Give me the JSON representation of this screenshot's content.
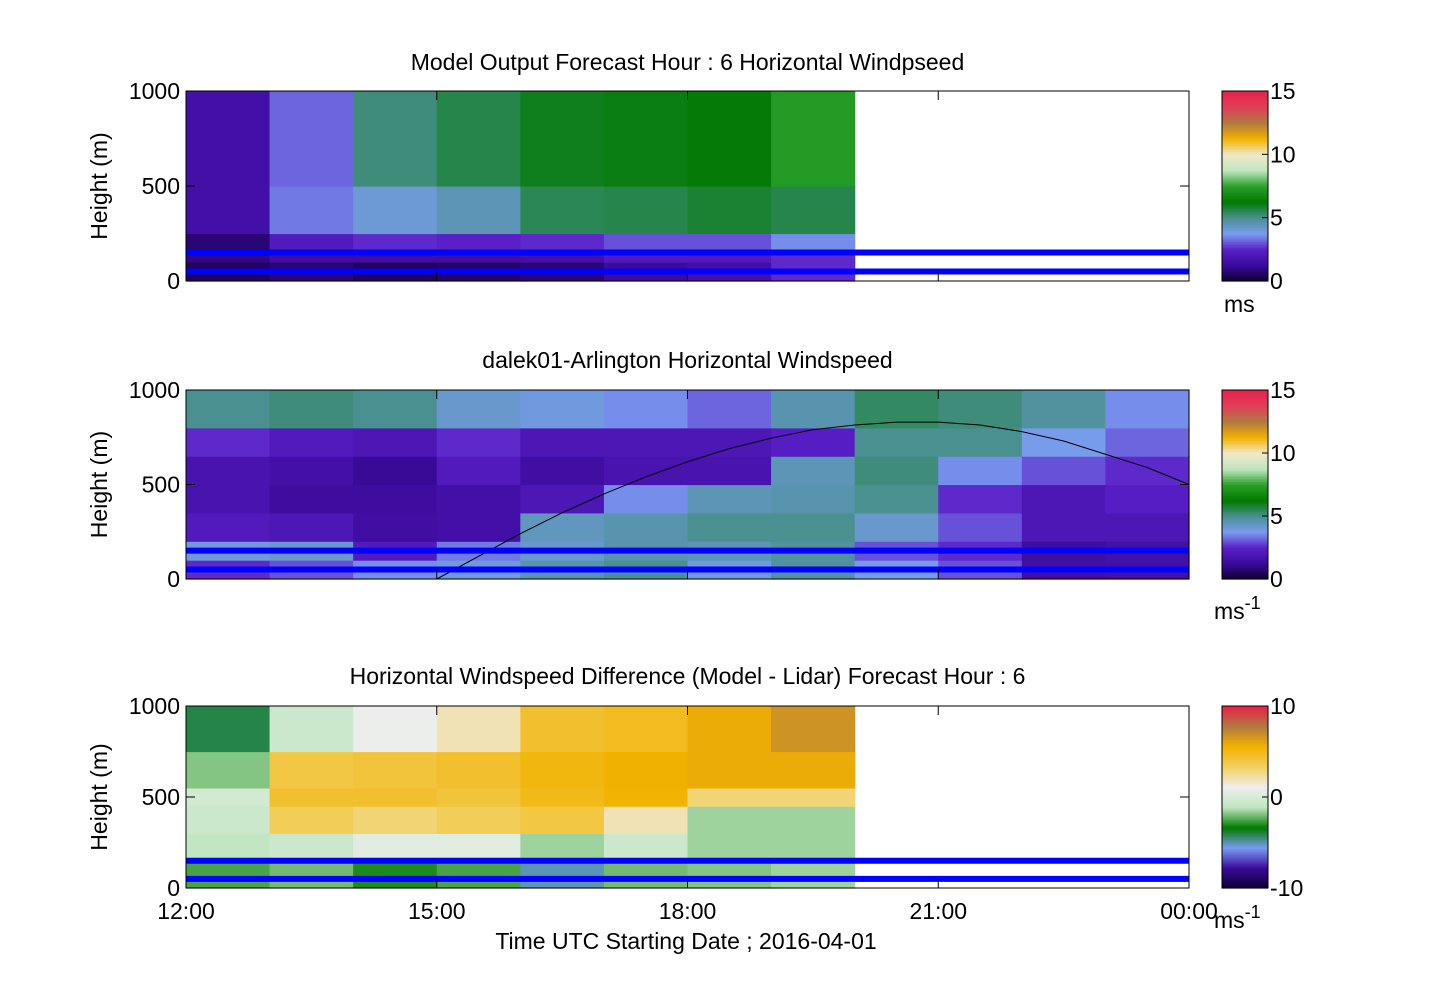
{
  "figure": {
    "xlabel": "Time UTC  Starting Date ; 2016-04-01"
  },
  "axis_common": {
    "ylabel": "Height (m)",
    "ylim": [
      0,
      1000
    ],
    "y_ticks": [
      "0",
      "500",
      "1000"
    ],
    "x_ticks": [
      "12:00",
      "15:00",
      "18:00",
      "21:00",
      "00:00"
    ],
    "x_tick_hours": [
      12,
      15,
      18,
      21,
      24
    ],
    "xlim_hours": [
      12,
      24
    ]
  },
  "reference_lines_m": [
    50,
    150
  ],
  "colors": {
    "reference_line": "#0000ff",
    "speed_colormap": [
      "#0d0030",
      "#3a0a9a",
      "#5a1fc8",
      "#7a9cf0",
      "#4a9090",
      "#007a00",
      "#2aa02a",
      "#bfe6bf",
      "#f0e8c8",
      "#f2b200",
      "#b07a40",
      "#e0405a",
      "#e8204a"
    ],
    "diff_colormap": [
      "#0d0030",
      "#3a0a9a",
      "#7a9cf0",
      "#007a00",
      "#bfe6bf",
      "#eeeeee",
      "#f2d060",
      "#f2b200",
      "#b07a40",
      "#e8204a"
    ]
  },
  "chart_data": [
    {
      "type": "heatmap",
      "title": "Model Output   Forecast Hour : 6 Horizontal Windpseed",
      "colorbar": {
        "ticks": [
          "0",
          "5",
          "10",
          "15"
        ],
        "range": [
          0,
          15
        ],
        "unit": "ms",
        "unit_sup": ""
      },
      "time_bins_hours": [
        [
          12,
          13
        ],
        [
          13,
          14
        ],
        [
          14,
          15
        ],
        [
          15,
          16
        ],
        [
          16,
          17
        ],
        [
          17,
          18
        ],
        [
          18,
          19
        ],
        [
          19,
          20
        ]
      ],
      "height_bands_m": [
        [
          0,
          100
        ],
        [
          100,
          150
        ],
        [
          150,
          250
        ],
        [
          250,
          500
        ],
        [
          500,
          1000
        ]
      ],
      "values": [
        [
          0.5,
          1.0,
          0.8,
          1.6,
          1.6
        ],
        [
          0.8,
          1.5,
          2.2,
          3.4,
          3.2
        ],
        [
          0.5,
          1.5,
          2.6,
          4.1,
          5.2
        ],
        [
          0.6,
          1.5,
          2.5,
          4.5,
          5.6
        ],
        [
          0.8,
          1.6,
          2.6,
          5.5,
          6.0
        ],
        [
          1.3,
          2.2,
          3.0,
          5.6,
          6.1
        ],
        [
          1.6,
          2.2,
          3.0,
          5.8,
          6.2
        ],
        [
          2.6,
          2.6,
          3.6,
          5.6,
          7.3
        ]
      ],
      "overlay_line": null
    },
    {
      "type": "heatmap",
      "title": "dalek01-Arlington  Horizontal Windspeed",
      "colorbar": {
        "ticks": [
          "0",
          "5",
          "10",
          "15"
        ],
        "range": [
          0,
          15
        ],
        "unit": "ms",
        "unit_sup": "-1"
      },
      "time_bins_hours": [
        [
          12,
          13
        ],
        [
          13,
          14
        ],
        [
          14,
          15
        ],
        [
          15,
          16
        ],
        [
          16,
          17
        ],
        [
          17,
          18
        ],
        [
          18,
          19
        ],
        [
          19,
          20
        ],
        [
          20,
          21
        ],
        [
          21,
          22
        ],
        [
          22,
          23
        ],
        [
          23,
          24
        ]
      ],
      "height_bands_m": [
        [
          0,
          100
        ],
        [
          100,
          200
        ],
        [
          200,
          350
        ],
        [
          350,
          500
        ],
        [
          500,
          650
        ],
        [
          650,
          800
        ],
        [
          800,
          1000
        ]
      ],
      "values": [
        [
          2.6,
          4.0,
          2.2,
          1.8,
          1.8,
          2.6,
          5.0
        ],
        [
          3.0,
          4.2,
          2.0,
          1.4,
          1.6,
          2.2,
          5.2
        ],
        [
          3.6,
          2.2,
          1.5,
          1.4,
          1.2,
          2.0,
          5.0
        ],
        [
          4.0,
          3.4,
          1.6,
          1.6,
          2.2,
          2.6,
          4.2
        ],
        [
          4.6,
          4.2,
          4.4,
          2.0,
          1.5,
          2.0,
          4.0
        ],
        [
          5.0,
          4.6,
          4.6,
          3.6,
          1.8,
          2.0,
          3.6
        ],
        [
          4.0,
          4.5,
          5.0,
          4.5,
          1.8,
          2.0,
          3.2
        ],
        [
          4.8,
          4.8,
          5.0,
          4.6,
          4.5,
          2.4,
          4.6
        ],
        [
          3.8,
          3.0,
          4.2,
          5.0,
          5.2,
          5.0,
          5.4
        ],
        [
          3.0,
          2.6,
          3.0,
          2.6,
          3.6,
          5.0,
          5.2
        ],
        [
          1.5,
          1.4,
          2.0,
          2.0,
          3.0,
          3.8,
          4.8
        ],
        [
          1.6,
          1.6,
          2.0,
          2.4,
          2.6,
          3.2,
          3.6
        ]
      ],
      "overlay_line": {
        "x_hours": [
          15,
          15.5,
          16,
          16.5,
          17,
          17.5,
          18,
          18.5,
          19,
          19.5,
          20,
          20.5,
          21,
          21.5,
          22,
          22.5,
          23,
          23.5,
          24
        ],
        "y_m": [
          0,
          120,
          240,
          350,
          450,
          540,
          620,
          690,
          745,
          790,
          815,
          830,
          830,
          815,
          780,
          730,
          660,
          590,
          500
        ]
      }
    },
    {
      "type": "heatmap",
      "title": "Horizontal Windspeed Difference (Model - Lidar) Forecast Hour : 6",
      "colorbar": {
        "ticks": [
          "-10",
          "0",
          "10"
        ],
        "range": [
          -10,
          10
        ],
        "unit": "ms",
        "unit_sup": "-1"
      },
      "time_bins_hours": [
        [
          12,
          13
        ],
        [
          13,
          14
        ],
        [
          14,
          15
        ],
        [
          15,
          16
        ],
        [
          16,
          17
        ],
        [
          17,
          18
        ],
        [
          18,
          19
        ],
        [
          19,
          20
        ]
      ],
      "height_bands_m": [
        [
          0,
          150
        ],
        [
          150,
          300
        ],
        [
          300,
          450
        ],
        [
          450,
          550
        ],
        [
          550,
          750
        ],
        [
          750,
          1000
        ]
      ],
      "values": [
        [
          -2.5,
          -1.0,
          -0.5,
          -0.2,
          -1.8,
          -4.0
        ],
        [
          -2.0,
          -0.5,
          3.5,
          4.5,
          4.0,
          -0.5
        ],
        [
          -3.0,
          0.5,
          3.0,
          4.5,
          4.2,
          1.0
        ],
        [
          -2.5,
          0.5,
          3.5,
          4.2,
          4.5,
          2.0
        ],
        [
          -5.0,
          -1.5,
          4.0,
          5.0,
          5.2,
          4.5
        ],
        [
          -2.0,
          -0.5,
          2.0,
          5.5,
          5.6,
          4.8
        ],
        [
          -1.8,
          -1.5,
          -1.5,
          3.0,
          5.8,
          5.8
        ],
        [
          -1.5,
          -1.5,
          -1.5,
          3.0,
          5.8,
          6.8
        ]
      ],
      "overlay_line": null
    }
  ]
}
